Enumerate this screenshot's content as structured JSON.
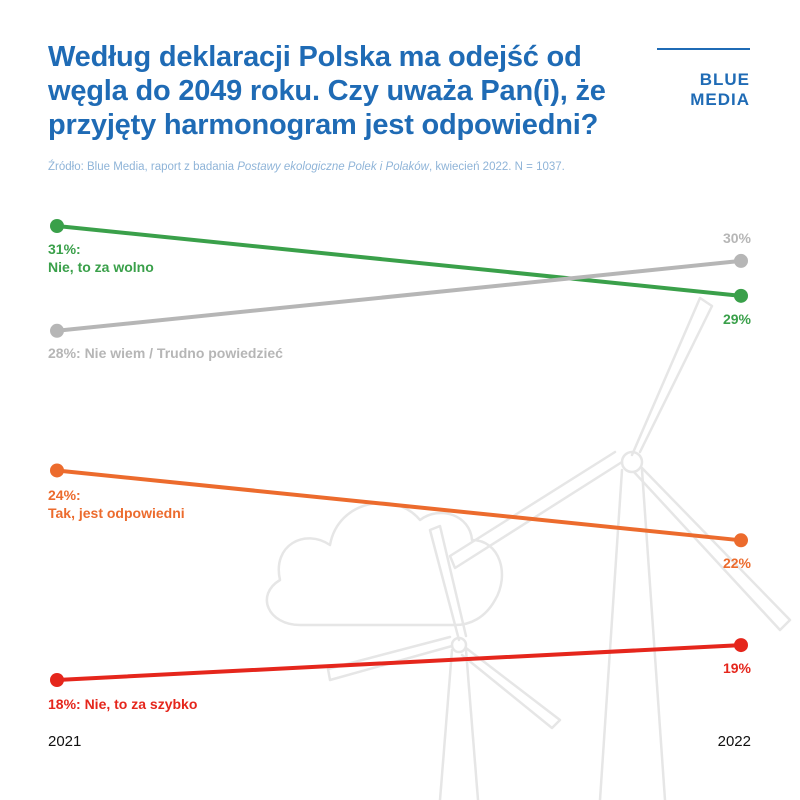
{
  "title": "Według deklaracji Polska ma odejść od węgla do 2049 roku. Czy uważa Pan(i), że przyjęty harmonogram jest odpowiedni?",
  "logo": {
    "line1": "BLUE",
    "line2": "MEDIA"
  },
  "source": {
    "prefix": "Źródło: Blue Media, raport z badania ",
    "italic": "Postawy ekologiczne Polek i Polaków",
    "suffix": ", kwiecień 2022. N = 1037."
  },
  "colors": {
    "title": "#1f6bb5",
    "nie_za_wolno": "#3aa04a",
    "nie_wiem": "#b6b6b6",
    "tak_odpowiedni": "#ec6b2d",
    "nie_za_szybko": "#e5261c",
    "background_art": "#e6e6e6"
  },
  "background_icon": "wind-turbine-cloud-illustration",
  "chart_data": {
    "type": "line",
    "x": [
      "2021",
      "2022"
    ],
    "series": [
      {
        "key": "nie_za_wolno",
        "name": "Nie, to za wolno",
        "values": [
          31,
          29
        ],
        "label_start_1": "31%:",
        "label_start_2": "Nie, to za wolno",
        "label_end": "29%"
      },
      {
        "key": "nie_wiem",
        "name": "Nie wiem / Trudno powiedzieć",
        "values": [
          28,
          30
        ],
        "label_start_1": "28%: Nie wiem / Trudno powiedzieć",
        "label_end": "30%"
      },
      {
        "key": "tak_odpowiedni",
        "name": "Tak, jest odpowiedni",
        "values": [
          24,
          22
        ],
        "label_start_1": "24%:",
        "label_start_2": "Tak, jest odpowiedni",
        "label_end": "22%"
      },
      {
        "key": "nie_za_szybko",
        "name": "Nie, to za szybko",
        "values": [
          18,
          19
        ],
        "label_start_1": "18%: Nie, to za szybko",
        "label_end": "19%"
      }
    ],
    "ylim": [
      18,
      31
    ],
    "grid": false,
    "legend": "none"
  }
}
